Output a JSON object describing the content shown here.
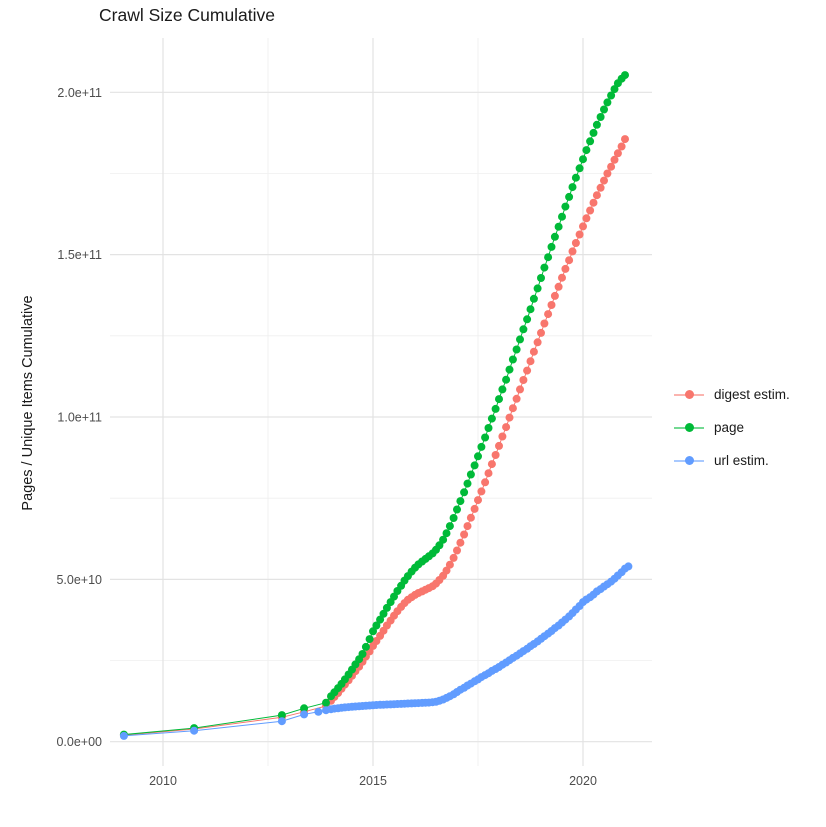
{
  "title": "Crawl Size Cumulative",
  "y_axis_title": "Pages / Unique Items Cumulative",
  "axes": {
    "x_major_ticks": [
      {
        "value": 2010,
        "label": "2010"
      },
      {
        "value": 2015,
        "label": "2015"
      },
      {
        "value": 2020,
        "label": "2020"
      }
    ],
    "x_minor_ticks": [
      2012.5,
      2017.5
    ],
    "y_major_ticks": [
      {
        "value": 0,
        "label": "0.0e+00"
      },
      {
        "value": 50,
        "label": "5.0e+10"
      },
      {
        "value": 100,
        "label": "1.0e+11"
      },
      {
        "value": 150,
        "label": "1.5e+11"
      },
      {
        "value": 200,
        "label": "2.0e+11"
      }
    ],
    "y_minor_ticks": [
      25,
      75,
      125,
      175
    ],
    "y_unit": "1e9 pages (labels shown in scientific notation)"
  },
  "legend": [
    {
      "id": "digest",
      "label": "digest estim.",
      "color": "#F8766D"
    },
    {
      "id": "page",
      "label": "page",
      "color": "#00BA38"
    },
    {
      "id": "url",
      "label": "url estim.",
      "color": "#619CFF"
    }
  ],
  "chart_data": {
    "type": "line",
    "title": "Crawl Size Cumulative",
    "xlabel": "",
    "ylabel": "Pages / Unique Items Cumulative",
    "x_range": [
      2008.8,
      2021.6
    ],
    "y_range_e9": [
      0,
      205.3
    ],
    "grid": true,
    "legend_position": "right",
    "marker": "point",
    "units_note": "point values in billions (1e9)",
    "series": [
      {
        "name": "digest estim.",
        "color": "#F8766D",
        "points": [
          [
            2009.07,
            2.0
          ],
          [
            2010.74,
            3.9
          ],
          [
            2012.83,
            7.5
          ],
          [
            2013.36,
            9.2
          ],
          [
            2013.88,
            11.0
          ],
          [
            2014.0,
            12.6
          ],
          [
            2014.08,
            13.8
          ],
          [
            2014.17,
            15.0
          ],
          [
            2014.25,
            16.3
          ],
          [
            2014.33,
            17.6
          ],
          [
            2014.42,
            18.9
          ],
          [
            2014.5,
            20.3
          ],
          [
            2014.58,
            21.7
          ],
          [
            2014.67,
            23.1
          ],
          [
            2014.75,
            24.6
          ],
          [
            2014.83,
            26.2
          ],
          [
            2014.92,
            27.8
          ],
          [
            2015.0,
            29.5
          ],
          [
            2015.08,
            31.0
          ],
          [
            2015.17,
            32.6
          ],
          [
            2015.25,
            34.2
          ],
          [
            2015.33,
            35.8
          ],
          [
            2015.42,
            37.3
          ],
          [
            2015.5,
            38.8
          ],
          [
            2015.58,
            40.2
          ],
          [
            2015.67,
            41.5
          ],
          [
            2015.75,
            42.7
          ],
          [
            2015.83,
            43.7
          ],
          [
            2015.92,
            44.5
          ],
          [
            2016.0,
            45.2
          ],
          [
            2016.08,
            45.8
          ],
          [
            2016.17,
            46.3
          ],
          [
            2016.25,
            46.8
          ],
          [
            2016.33,
            47.3
          ],
          [
            2016.42,
            47.9
          ],
          [
            2016.5,
            48.7
          ],
          [
            2016.58,
            49.8
          ],
          [
            2016.67,
            51.1
          ],
          [
            2016.75,
            52.7
          ],
          [
            2016.83,
            54.5
          ],
          [
            2016.92,
            56.6
          ],
          [
            2017.0,
            58.9
          ],
          [
            2017.08,
            61.3
          ],
          [
            2017.17,
            63.8
          ],
          [
            2017.25,
            66.4
          ],
          [
            2017.33,
            69.0
          ],
          [
            2017.42,
            71.7
          ],
          [
            2017.5,
            74.4
          ],
          [
            2017.58,
            77.1
          ],
          [
            2017.67,
            79.9
          ],
          [
            2017.75,
            82.7
          ],
          [
            2017.83,
            85.5
          ],
          [
            2017.92,
            88.3
          ],
          [
            2018.0,
            91.1
          ],
          [
            2018.08,
            94.0
          ],
          [
            2018.17,
            96.9
          ],
          [
            2018.25,
            99.8
          ],
          [
            2018.33,
            102.7
          ],
          [
            2018.42,
            105.6
          ],
          [
            2018.5,
            108.5
          ],
          [
            2018.58,
            111.4
          ],
          [
            2018.67,
            114.3
          ],
          [
            2018.75,
            117.2
          ],
          [
            2018.83,
            120.1
          ],
          [
            2018.92,
            123.0
          ],
          [
            2019.0,
            125.9
          ],
          [
            2019.08,
            128.8
          ],
          [
            2019.17,
            131.7
          ],
          [
            2019.25,
            134.5
          ],
          [
            2019.33,
            137.3
          ],
          [
            2019.42,
            140.1
          ],
          [
            2019.5,
            142.9
          ],
          [
            2019.58,
            145.6
          ],
          [
            2019.67,
            148.3
          ],
          [
            2019.75,
            151.0
          ],
          [
            2019.83,
            153.6
          ],
          [
            2019.92,
            156.2
          ],
          [
            2020.0,
            158.7
          ],
          [
            2020.08,
            161.2
          ],
          [
            2020.17,
            163.6
          ],
          [
            2020.25,
            166.0
          ],
          [
            2020.33,
            168.3
          ],
          [
            2020.42,
            170.6
          ],
          [
            2020.5,
            172.8
          ],
          [
            2020.58,
            175.0
          ],
          [
            2020.67,
            177.1
          ],
          [
            2020.75,
            179.2
          ],
          [
            2020.83,
            181.2
          ],
          [
            2020.92,
            183.3
          ],
          [
            2021.0,
            185.6
          ]
        ]
      },
      {
        "name": "page",
        "color": "#00BA38",
        "points": [
          [
            2009.07,
            2.2
          ],
          [
            2010.74,
            4.2
          ],
          [
            2012.83,
            8.2
          ],
          [
            2013.36,
            10.3
          ],
          [
            2013.88,
            12.0
          ],
          [
            2014.0,
            14.0
          ],
          [
            2014.08,
            15.2
          ],
          [
            2014.17,
            16.5
          ],
          [
            2014.25,
            17.8
          ],
          [
            2014.33,
            19.2
          ],
          [
            2014.42,
            20.7
          ],
          [
            2014.5,
            22.2
          ],
          [
            2014.58,
            23.8
          ],
          [
            2014.67,
            25.4
          ],
          [
            2014.75,
            27.0
          ],
          [
            2014.83,
            29.2
          ],
          [
            2014.92,
            31.6
          ],
          [
            2015.0,
            34.0
          ],
          [
            2015.08,
            35.8
          ],
          [
            2015.17,
            37.6
          ],
          [
            2015.25,
            39.4
          ],
          [
            2015.33,
            41.2
          ],
          [
            2015.42,
            43.0
          ],
          [
            2015.5,
            44.7
          ],
          [
            2015.58,
            46.4
          ],
          [
            2015.67,
            48.0
          ],
          [
            2015.75,
            49.6
          ],
          [
            2015.83,
            51.0
          ],
          [
            2015.92,
            52.4
          ],
          [
            2016.0,
            53.6
          ],
          [
            2016.08,
            54.6
          ],
          [
            2016.17,
            55.5
          ],
          [
            2016.25,
            56.3
          ],
          [
            2016.33,
            57.1
          ],
          [
            2016.42,
            58.0
          ],
          [
            2016.5,
            59.1
          ],
          [
            2016.58,
            60.5
          ],
          [
            2016.67,
            62.2
          ],
          [
            2016.75,
            64.2
          ],
          [
            2016.83,
            66.4
          ],
          [
            2016.92,
            68.9
          ],
          [
            2017.0,
            71.5
          ],
          [
            2017.08,
            74.1
          ],
          [
            2017.17,
            76.8
          ],
          [
            2017.25,
            79.5
          ],
          [
            2017.33,
            82.3
          ],
          [
            2017.42,
            85.1
          ],
          [
            2017.5,
            87.9
          ],
          [
            2017.58,
            90.8
          ],
          [
            2017.67,
            93.7
          ],
          [
            2017.75,
            96.6
          ],
          [
            2017.83,
            99.5
          ],
          [
            2017.92,
            102.5
          ],
          [
            2018.0,
            105.5
          ],
          [
            2018.08,
            108.5
          ],
          [
            2018.17,
            111.5
          ],
          [
            2018.25,
            114.6
          ],
          [
            2018.33,
            117.7
          ],
          [
            2018.42,
            120.8
          ],
          [
            2018.5,
            123.9
          ],
          [
            2018.58,
            127.0
          ],
          [
            2018.67,
            130.1
          ],
          [
            2018.75,
            133.2
          ],
          [
            2018.83,
            136.4
          ],
          [
            2018.92,
            139.6
          ],
          [
            2019.0,
            142.8
          ],
          [
            2019.08,
            146.0
          ],
          [
            2019.17,
            149.2
          ],
          [
            2019.25,
            152.4
          ],
          [
            2019.33,
            155.5
          ],
          [
            2019.42,
            158.6
          ],
          [
            2019.5,
            161.7
          ],
          [
            2019.58,
            164.8
          ],
          [
            2019.67,
            167.8
          ],
          [
            2019.75,
            170.8
          ],
          [
            2019.83,
            173.7
          ],
          [
            2019.92,
            176.6
          ],
          [
            2020.0,
            179.4
          ],
          [
            2020.08,
            182.2
          ],
          [
            2020.17,
            184.9
          ],
          [
            2020.25,
            187.5
          ],
          [
            2020.33,
            190.0
          ],
          [
            2020.42,
            192.4
          ],
          [
            2020.5,
            194.7
          ],
          [
            2020.58,
            196.9
          ],
          [
            2020.67,
            199.0
          ],
          [
            2020.75,
            201.0
          ],
          [
            2020.83,
            202.8
          ],
          [
            2020.92,
            204.2
          ],
          [
            2021.0,
            205.3
          ]
        ]
      },
      {
        "name": "url estim.",
        "color": "#619CFF",
        "points": [
          [
            2009.07,
            1.8
          ],
          [
            2010.74,
            3.4
          ],
          [
            2012.83,
            6.3
          ],
          [
            2013.36,
            8.4
          ],
          [
            2013.7,
            9.2
          ],
          [
            2013.88,
            9.7
          ],
          [
            2014.0,
            10.0
          ],
          [
            2014.08,
            10.2
          ],
          [
            2014.17,
            10.3
          ],
          [
            2014.25,
            10.45
          ],
          [
            2014.33,
            10.55
          ],
          [
            2014.42,
            10.65
          ],
          [
            2014.5,
            10.75
          ],
          [
            2014.58,
            10.85
          ],
          [
            2014.67,
            10.9
          ],
          [
            2014.75,
            11.0
          ],
          [
            2014.83,
            11.05
          ],
          [
            2014.92,
            11.15
          ],
          [
            2015.0,
            11.2
          ],
          [
            2015.08,
            11.3
          ],
          [
            2015.17,
            11.35
          ],
          [
            2015.25,
            11.4
          ],
          [
            2015.33,
            11.45
          ],
          [
            2015.42,
            11.5
          ],
          [
            2015.5,
            11.55
          ],
          [
            2015.58,
            11.6
          ],
          [
            2015.67,
            11.65
          ],
          [
            2015.75,
            11.7
          ],
          [
            2015.83,
            11.75
          ],
          [
            2015.92,
            11.8
          ],
          [
            2016.0,
            11.85
          ],
          [
            2016.08,
            11.9
          ],
          [
            2016.17,
            11.95
          ],
          [
            2016.25,
            12.0
          ],
          [
            2016.33,
            12.05
          ],
          [
            2016.42,
            12.15
          ],
          [
            2016.5,
            12.3
          ],
          [
            2016.58,
            12.6
          ],
          [
            2016.67,
            13.0
          ],
          [
            2016.75,
            13.5
          ],
          [
            2016.83,
            14.0
          ],
          [
            2016.92,
            14.6
          ],
          [
            2017.0,
            15.3
          ],
          [
            2017.08,
            16.0
          ],
          [
            2017.17,
            16.6
          ],
          [
            2017.25,
            17.3
          ],
          [
            2017.33,
            17.9
          ],
          [
            2017.42,
            18.6
          ],
          [
            2017.5,
            19.2
          ],
          [
            2017.58,
            19.9
          ],
          [
            2017.67,
            20.5
          ],
          [
            2017.75,
            21.1
          ],
          [
            2017.83,
            21.8
          ],
          [
            2017.92,
            22.4
          ],
          [
            2018.0,
            23.0
          ],
          [
            2018.08,
            23.7
          ],
          [
            2018.17,
            24.4
          ],
          [
            2018.25,
            25.1
          ],
          [
            2018.33,
            25.8
          ],
          [
            2018.42,
            26.5
          ],
          [
            2018.5,
            27.2
          ],
          [
            2018.58,
            27.9
          ],
          [
            2018.67,
            28.6
          ],
          [
            2018.75,
            29.4
          ],
          [
            2018.83,
            30.1
          ],
          [
            2018.92,
            30.9
          ],
          [
            2019.0,
            31.7
          ],
          [
            2019.08,
            32.5
          ],
          [
            2019.17,
            33.3
          ],
          [
            2019.25,
            34.1
          ],
          [
            2019.33,
            35.0
          ],
          [
            2019.42,
            35.8
          ],
          [
            2019.5,
            36.7
          ],
          [
            2019.58,
            37.6
          ],
          [
            2019.67,
            38.6
          ],
          [
            2019.75,
            39.6
          ],
          [
            2019.83,
            40.7
          ],
          [
            2019.92,
            41.8
          ],
          [
            2020.0,
            43.0
          ],
          [
            2020.08,
            43.8
          ],
          [
            2020.17,
            44.5
          ],
          [
            2020.25,
            45.3
          ],
          [
            2020.33,
            46.3
          ],
          [
            2020.42,
            47.0
          ],
          [
            2020.5,
            47.8
          ],
          [
            2020.58,
            48.5
          ],
          [
            2020.67,
            49.3
          ],
          [
            2020.75,
            50.2
          ],
          [
            2020.83,
            51.2
          ],
          [
            2020.92,
            52.2
          ],
          [
            2021.0,
            53.3
          ],
          [
            2021.08,
            54.0
          ]
        ]
      }
    ]
  },
  "style": {
    "major_grid_color": "#e3e3e3",
    "minor_grid_color": "#efefef",
    "tick_label_color": "#4d4d4d",
    "text_color": "#1a1a1a",
    "background": "#ffffff"
  }
}
